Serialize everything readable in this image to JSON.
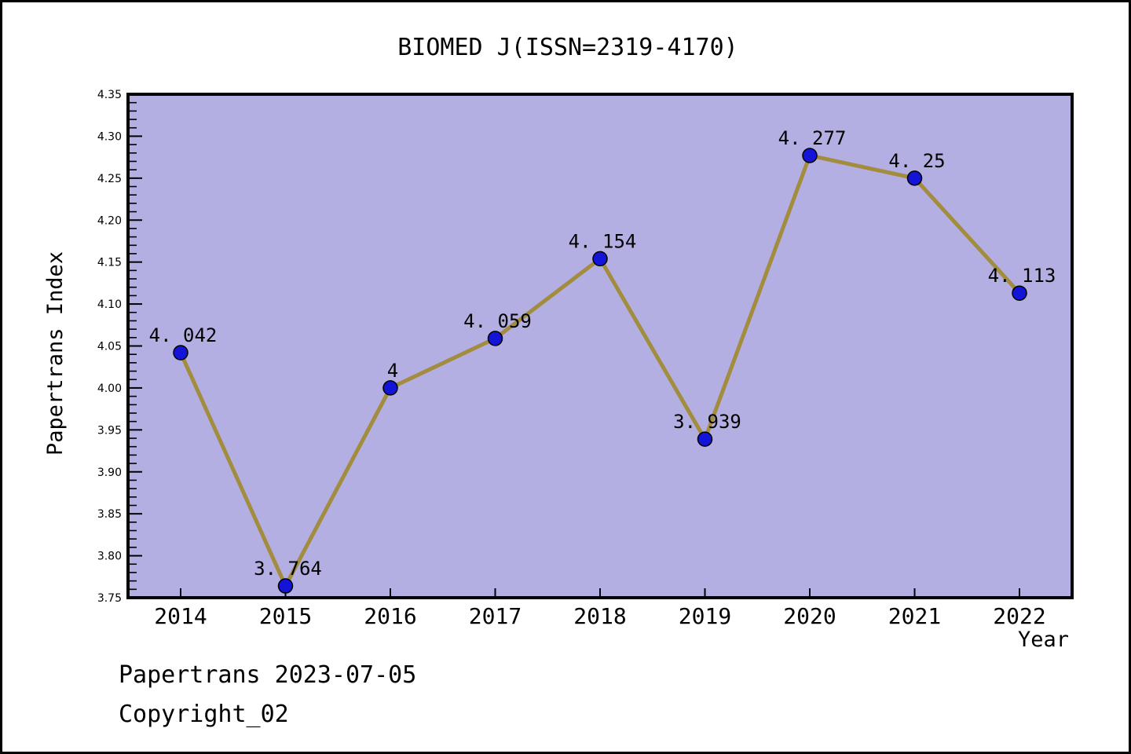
{
  "window": {
    "background": "#ffffff",
    "border_color": "#000000"
  },
  "chart_data": {
    "type": "line",
    "title": "BIOMED J(ISSN=2319-4170)",
    "xlabel": "Year",
    "ylabel": "Papertrans Index",
    "categories": [
      "2014",
      "2015",
      "2016",
      "2017",
      "2018",
      "2019",
      "2020",
      "2021",
      "2022"
    ],
    "series": [
      {
        "name": "Papertrans Index",
        "values": [
          4.042,
          3.764,
          4,
          4.059,
          4.154,
          3.939,
          4.277,
          4.25,
          4.113
        ],
        "point_labels": [
          "4. 042",
          "3. 764",
          "4",
          "4. 059",
          "4. 154",
          "3. 939",
          "4. 277",
          "4. 25",
          "4. 113"
        ]
      }
    ],
    "ylim": [
      3.75,
      4.35
    ],
    "y_major_step": 0.05,
    "y_minor_step": 0.01,
    "y_tick_labels": [
      "3.75",
      "3.80",
      "3.85",
      "3.90",
      "3.95",
      "4.00",
      "4.05",
      "4.10",
      "4.15",
      "4.20",
      "4.25",
      "4.30",
      "4.35"
    ],
    "grid": false,
    "legend": "none",
    "colors": {
      "line": "#a28c3e",
      "marker": "#1414d8",
      "marker_edge": "#000000",
      "plot_background": "#b4afe2",
      "frame": "#000000",
      "text": "#000000"
    }
  },
  "footer": {
    "line1": "Papertrans 2023-07-05",
    "line2": "Copyright_02"
  }
}
